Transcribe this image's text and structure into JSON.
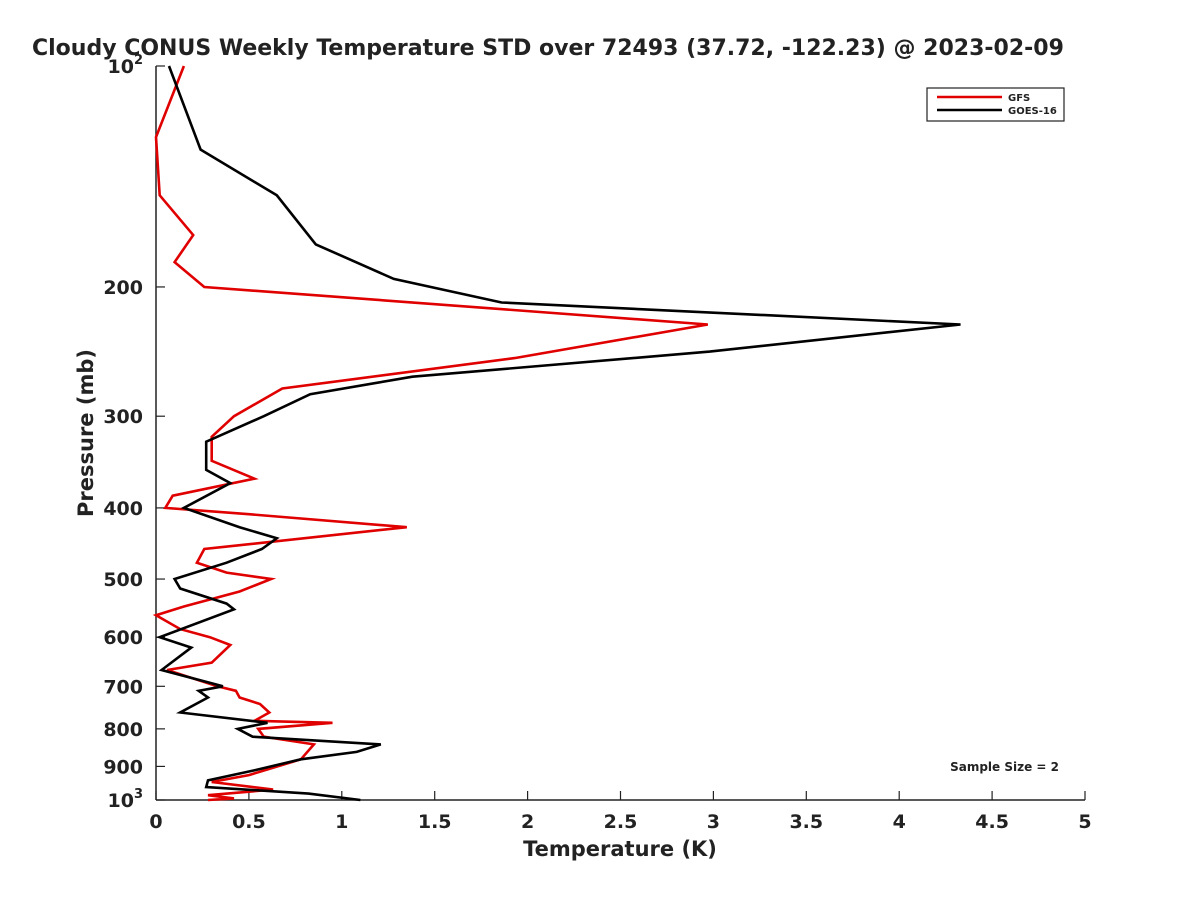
{
  "chart_data": {
    "type": "line",
    "title": "Cloudy CONUS Weekly Temperature STD over 72493 (37.72, -122.23) @ 2023-02-09",
    "xlabel": "Temperature (K)",
    "ylabel": "Pressure (mb)",
    "xlim": [
      0,
      5
    ],
    "ylim": [
      100,
      1000
    ],
    "y_scale": "log",
    "y_reversed": true,
    "x_ticks": [
      "0",
      "0.5",
      "1",
      "1.5",
      "2",
      "2.5",
      "3",
      "3.5",
      "4",
      "4.5",
      "5"
    ],
    "y_ticks": [
      {
        "value": 100,
        "base": "10",
        "exp": "2"
      },
      {
        "value": 200,
        "label": "200"
      },
      {
        "value": 300,
        "label": "300"
      },
      {
        "value": 400,
        "label": "400"
      },
      {
        "value": 500,
        "label": "500"
      },
      {
        "value": 600,
        "label": "600"
      },
      {
        "value": 700,
        "label": "700"
      },
      {
        "value": 800,
        "label": "800"
      },
      {
        "value": 900,
        "label": "900"
      },
      {
        "value": 1000,
        "base": "10",
        "exp": "3"
      }
    ],
    "grid": false,
    "legend_position": "top-right",
    "annotation": "Sample Size = 2",
    "series": [
      {
        "name": "GFS",
        "color": "#e00000",
        "points": [
          [
            0.15,
            100
          ],
          [
            0.0,
            125
          ],
          [
            0.02,
            150
          ],
          [
            0.2,
            170
          ],
          [
            0.1,
            185
          ],
          [
            0.26,
            200
          ],
          [
            2.97,
            225
          ],
          [
            1.93,
            250
          ],
          [
            0.68,
            275
          ],
          [
            0.42,
            300
          ],
          [
            0.3,
            320
          ],
          [
            0.3,
            345
          ],
          [
            0.53,
            365
          ],
          [
            0.09,
            385
          ],
          [
            0.05,
            400
          ],
          [
            0.5,
            408
          ],
          [
            1.35,
            425
          ],
          [
            0.26,
            455
          ],
          [
            0.22,
            475
          ],
          [
            0.38,
            490
          ],
          [
            0.62,
            500
          ],
          [
            0.45,
            520
          ],
          [
            0.15,
            545
          ],
          [
            0.0,
            560
          ],
          [
            0.13,
            585
          ],
          [
            0.29,
            600
          ],
          [
            0.4,
            615
          ],
          [
            0.3,
            650
          ],
          [
            0.06,
            665
          ],
          [
            0.33,
            700
          ],
          [
            0.43,
            710
          ],
          [
            0.45,
            725
          ],
          [
            0.56,
            740
          ],
          [
            0.61,
            760
          ],
          [
            0.53,
            780
          ],
          [
            0.95,
            785
          ],
          [
            0.55,
            800
          ],
          [
            0.58,
            820
          ],
          [
            0.85,
            840
          ],
          [
            0.78,
            880
          ],
          [
            0.5,
            925
          ],
          [
            0.3,
            945
          ],
          [
            0.63,
            968
          ],
          [
            0.28,
            985
          ],
          [
            0.42,
            995
          ],
          [
            0.28,
            1000
          ]
        ]
      },
      {
        "name": "GOES-16",
        "color": "#000000",
        "points": [
          [
            0.07,
            100
          ],
          [
            0.24,
            130
          ],
          [
            0.65,
            150
          ],
          [
            0.86,
            175
          ],
          [
            1.28,
            195
          ],
          [
            1.86,
            210
          ],
          [
            4.33,
            225
          ],
          [
            2.98,
            245
          ],
          [
            1.38,
            265
          ],
          [
            0.83,
            280
          ],
          [
            0.58,
            300
          ],
          [
            0.27,
            325
          ],
          [
            0.27,
            355
          ],
          [
            0.4,
            370
          ],
          [
            0.15,
            400
          ],
          [
            0.45,
            425
          ],
          [
            0.65,
            440
          ],
          [
            0.57,
            455
          ],
          [
            0.38,
            475
          ],
          [
            0.1,
            500
          ],
          [
            0.13,
            515
          ],
          [
            0.38,
            540
          ],
          [
            0.42,
            550
          ],
          [
            0.02,
            600
          ],
          [
            0.19,
            620
          ],
          [
            0.03,
            665
          ],
          [
            0.36,
            700
          ],
          [
            0.23,
            710
          ],
          [
            0.28,
            725
          ],
          [
            0.13,
            760
          ],
          [
            0.6,
            785
          ],
          [
            0.44,
            800
          ],
          [
            0.52,
            820
          ],
          [
            1.21,
            840
          ],
          [
            1.08,
            860
          ],
          [
            0.78,
            880
          ],
          [
            0.54,
            910
          ],
          [
            0.28,
            940
          ],
          [
            0.27,
            960
          ],
          [
            0.82,
            980
          ],
          [
            1.1,
            1000
          ]
        ]
      }
    ]
  }
}
